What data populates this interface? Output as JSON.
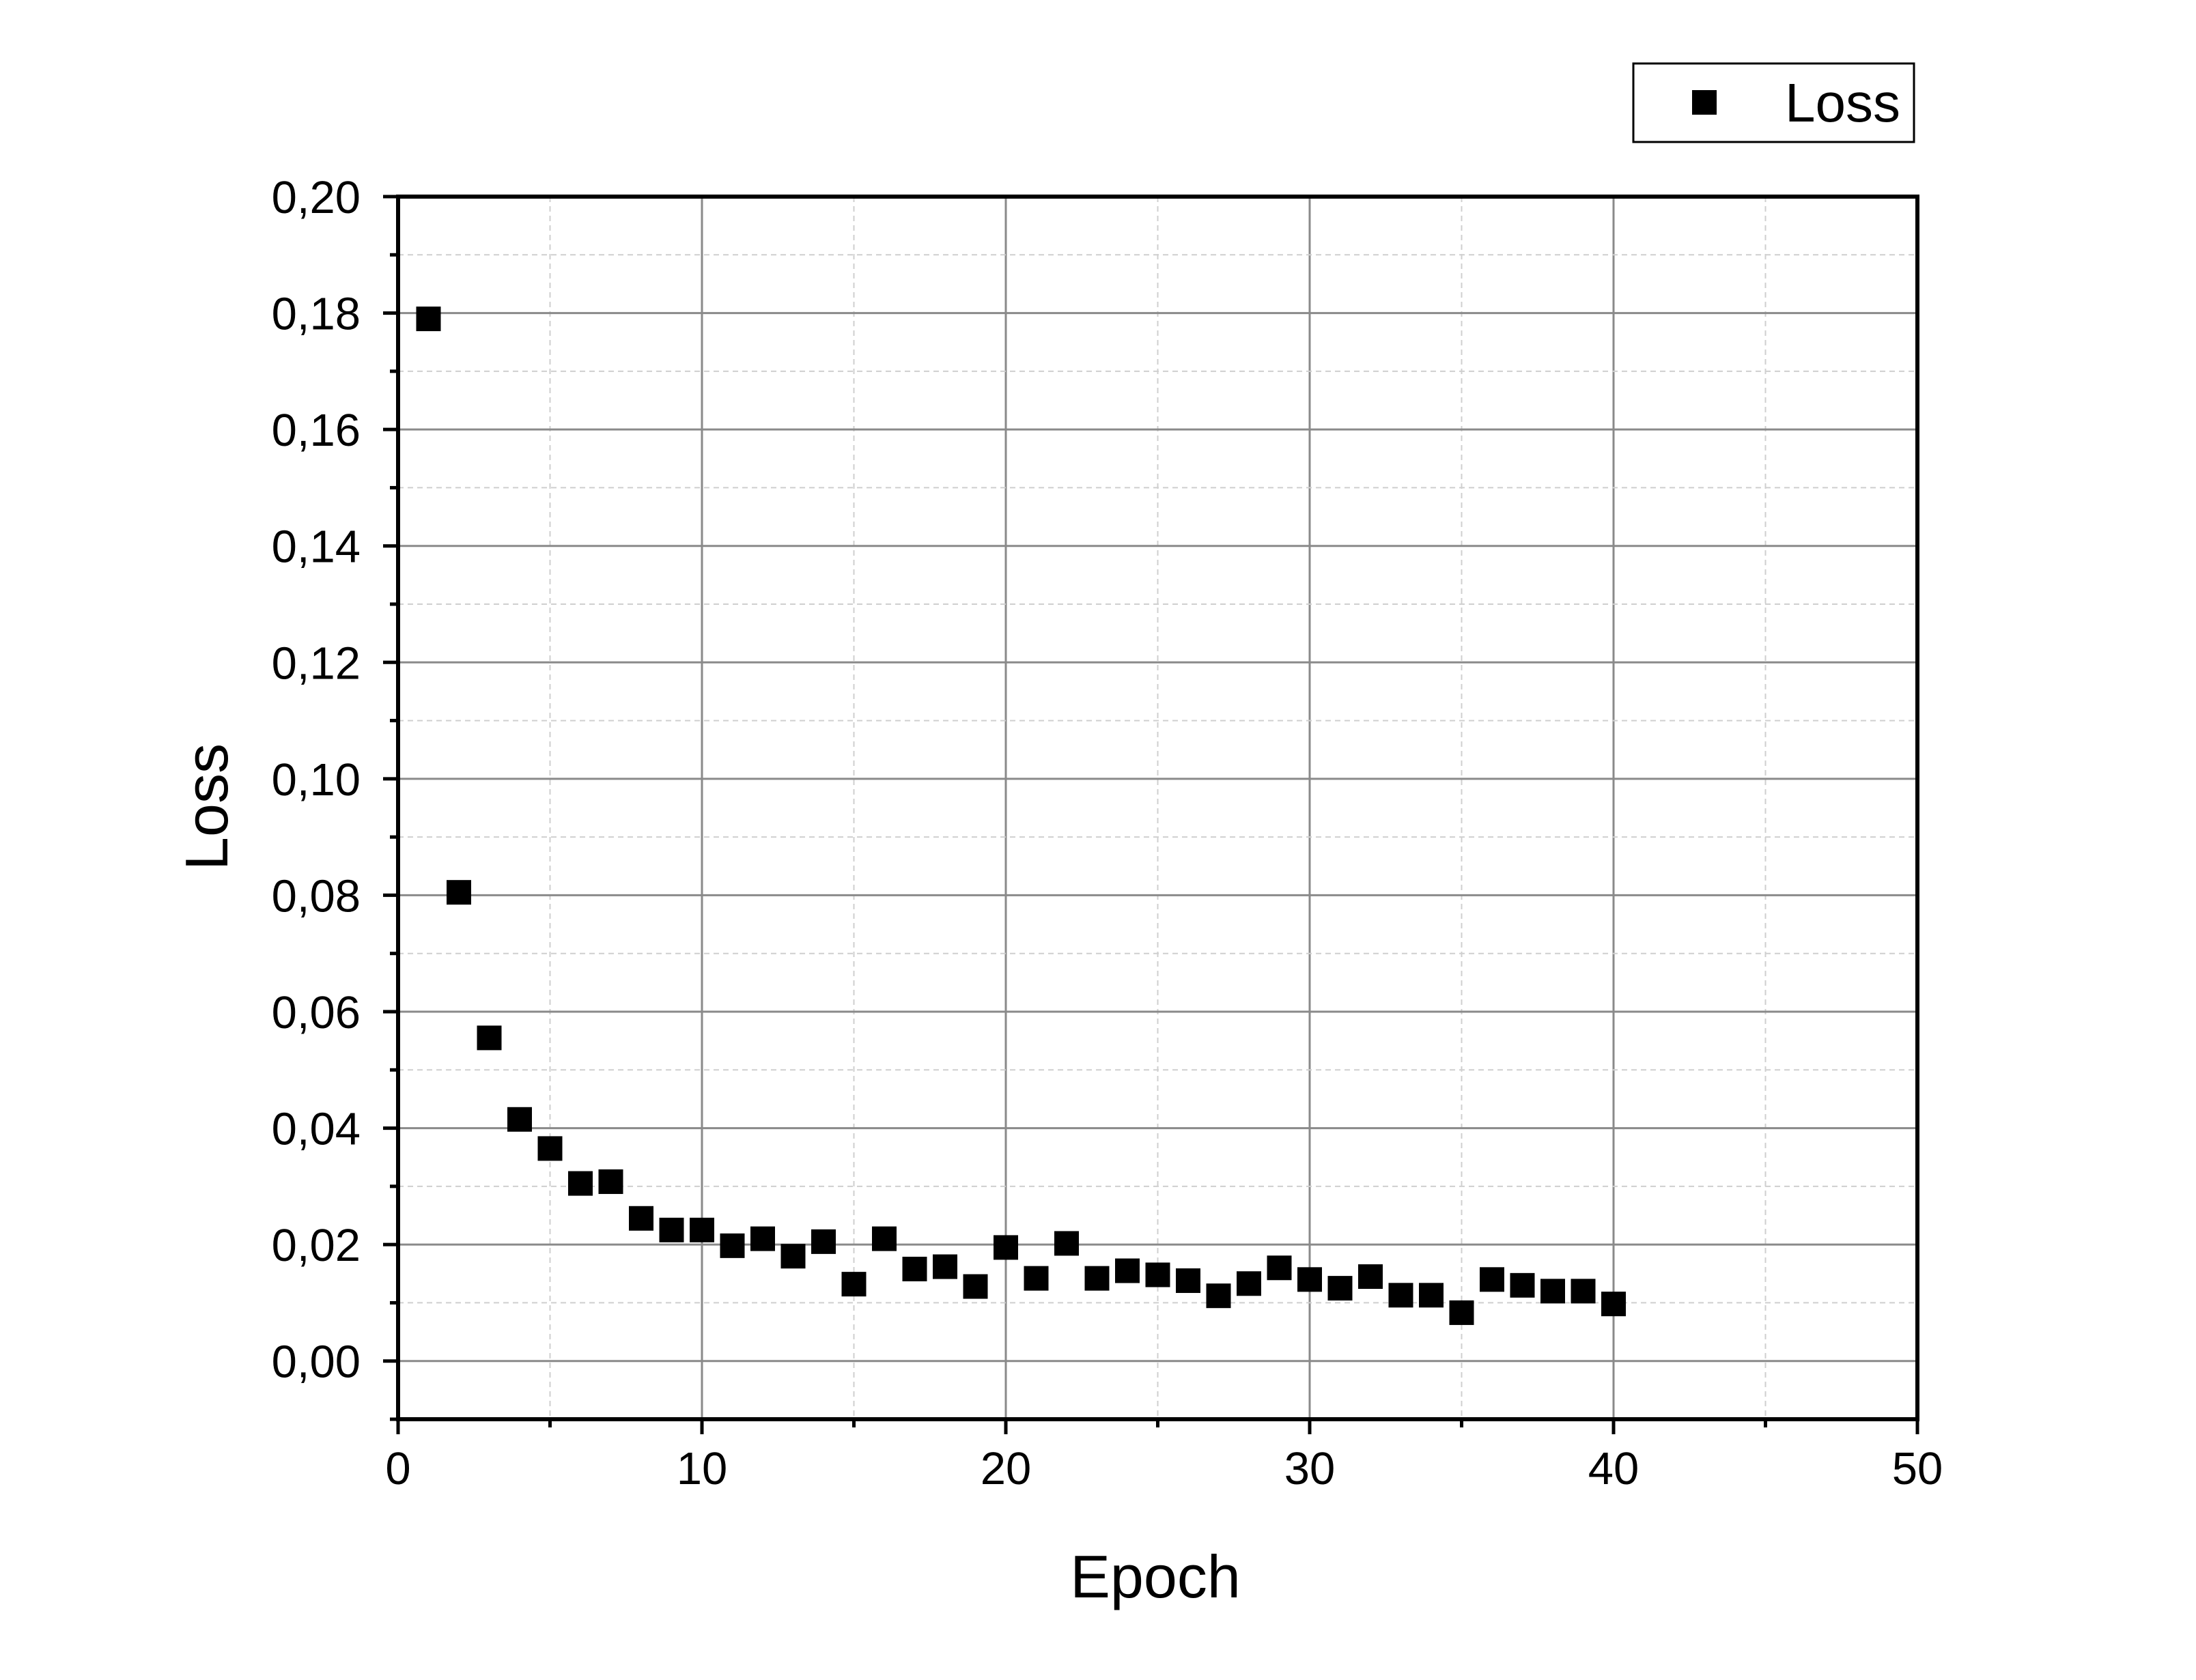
{
  "chart_data": {
    "type": "scatter",
    "xlabel": "Epoch",
    "ylabel": "Loss",
    "xlim": [
      0,
      50
    ],
    "ylim": [
      -0.01,
      0.2
    ],
    "x_ticks": [
      0,
      10,
      20,
      30,
      40,
      50
    ],
    "x_tick_labels": [
      "0",
      "10",
      "20",
      "30",
      "40",
      "50"
    ],
    "y_ticks": [
      0.0,
      0.02,
      0.04,
      0.06,
      0.08,
      0.1,
      0.12,
      0.14,
      0.16,
      0.18,
      0.2
    ],
    "y_tick_labels": [
      "0,00",
      "0,02",
      "0,04",
      "0,06",
      "0,08",
      "0,10",
      "0,12",
      "0,14",
      "0,16",
      "0,18",
      "0,20"
    ],
    "grid": true,
    "legend": {
      "position": "top-right",
      "entries": [
        "Loss"
      ]
    },
    "marker": "square",
    "colors": {
      "marker": "#000000",
      "major_grid": "#8a8a8a",
      "minor_grid": "#cfcfcf"
    },
    "series": [
      {
        "name": "Loss",
        "x": [
          1,
          2,
          3,
          4,
          5,
          6,
          7,
          8,
          9,
          10,
          11,
          12,
          13,
          14,
          15,
          16,
          17,
          18,
          19,
          20,
          21,
          22,
          23,
          24,
          25,
          26,
          27,
          28,
          29,
          30,
          31,
          32,
          33,
          34,
          35,
          36,
          37,
          38,
          39,
          40
        ],
        "y": [
          0.179,
          0.0805,
          0.0555,
          0.0415,
          0.0365,
          0.0305,
          0.0308,
          0.0245,
          0.0225,
          0.0225,
          0.0198,
          0.021,
          0.018,
          0.0205,
          0.0132,
          0.021,
          0.0158,
          0.0162,
          0.0128,
          0.0195,
          0.0142,
          0.0202,
          0.0142,
          0.0155,
          0.0148,
          0.0138,
          0.0112,
          0.0133,
          0.016,
          0.014,
          0.0125,
          0.0145,
          0.0113,
          0.0113,
          0.0083,
          0.014,
          0.013,
          0.012,
          0.012,
          0.0098
        ]
      }
    ]
  }
}
